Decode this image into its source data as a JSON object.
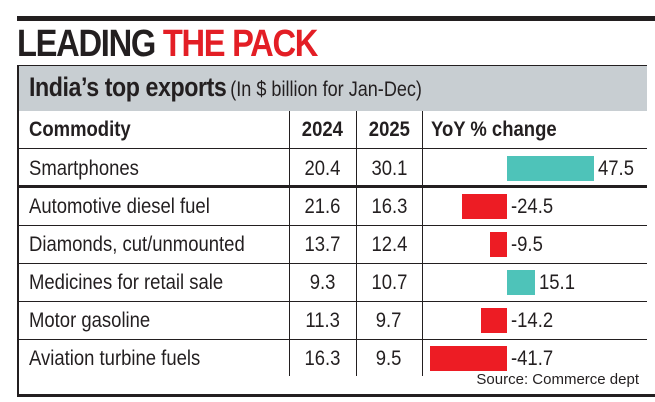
{
  "headline": {
    "part1": "LEADING",
    "part2": "THE PACK"
  },
  "subhead": {
    "title": "India’s top exports",
    "note": "(In $ billion for Jan-Dec)"
  },
  "colors": {
    "positive": "#4ec3b9",
    "negative": "#ed1c24",
    "accent": "#e31e25",
    "header_bg": "#c8ced2"
  },
  "table": {
    "headers": [
      "Commodity",
      "2024",
      "2025",
      "YoY % change"
    ]
  },
  "chart_data": {
    "type": "table",
    "title": "India’s top exports",
    "subtitle": "(In $ billion for Jan-Dec)",
    "columns": [
      "Commodity",
      "2024",
      "2025",
      "YoY % change"
    ],
    "rows": [
      {
        "commodity": "Smartphones",
        "y2024": "20.4",
        "y2025": "30.1",
        "yoy": 47.5,
        "yoy_label": "47.5"
      },
      {
        "commodity": "Automotive diesel fuel",
        "y2024": "21.6",
        "y2025": "16.3",
        "yoy": -24.5,
        "yoy_label": "-24.5"
      },
      {
        "commodity": "Diamonds, cut/unmounted",
        "y2024": "13.7",
        "y2025": "12.4",
        "yoy": -9.5,
        "yoy_label": "-9.5"
      },
      {
        "commodity": "Medicines for retail sale",
        "y2024": "9.3",
        "y2025": "10.7",
        "yoy": 15.1,
        "yoy_label": "15.1"
      },
      {
        "commodity": "Motor gasoline",
        "y2024": "11.3",
        "y2025": "9.7",
        "yoy": -14.2,
        "yoy_label": "-14.2"
      },
      {
        "commodity": "Aviation turbine fuels",
        "y2024": "16.3",
        "y2025": "9.5",
        "yoy": -41.7,
        "yoy_label": "-41.7"
      }
    ],
    "bar_series": {
      "name": "YoY % change",
      "values": [
        47.5,
        -24.5,
        -9.5,
        15.1,
        -14.2,
        -41.7
      ]
    }
  },
  "source": "Source: Commerce dept"
}
